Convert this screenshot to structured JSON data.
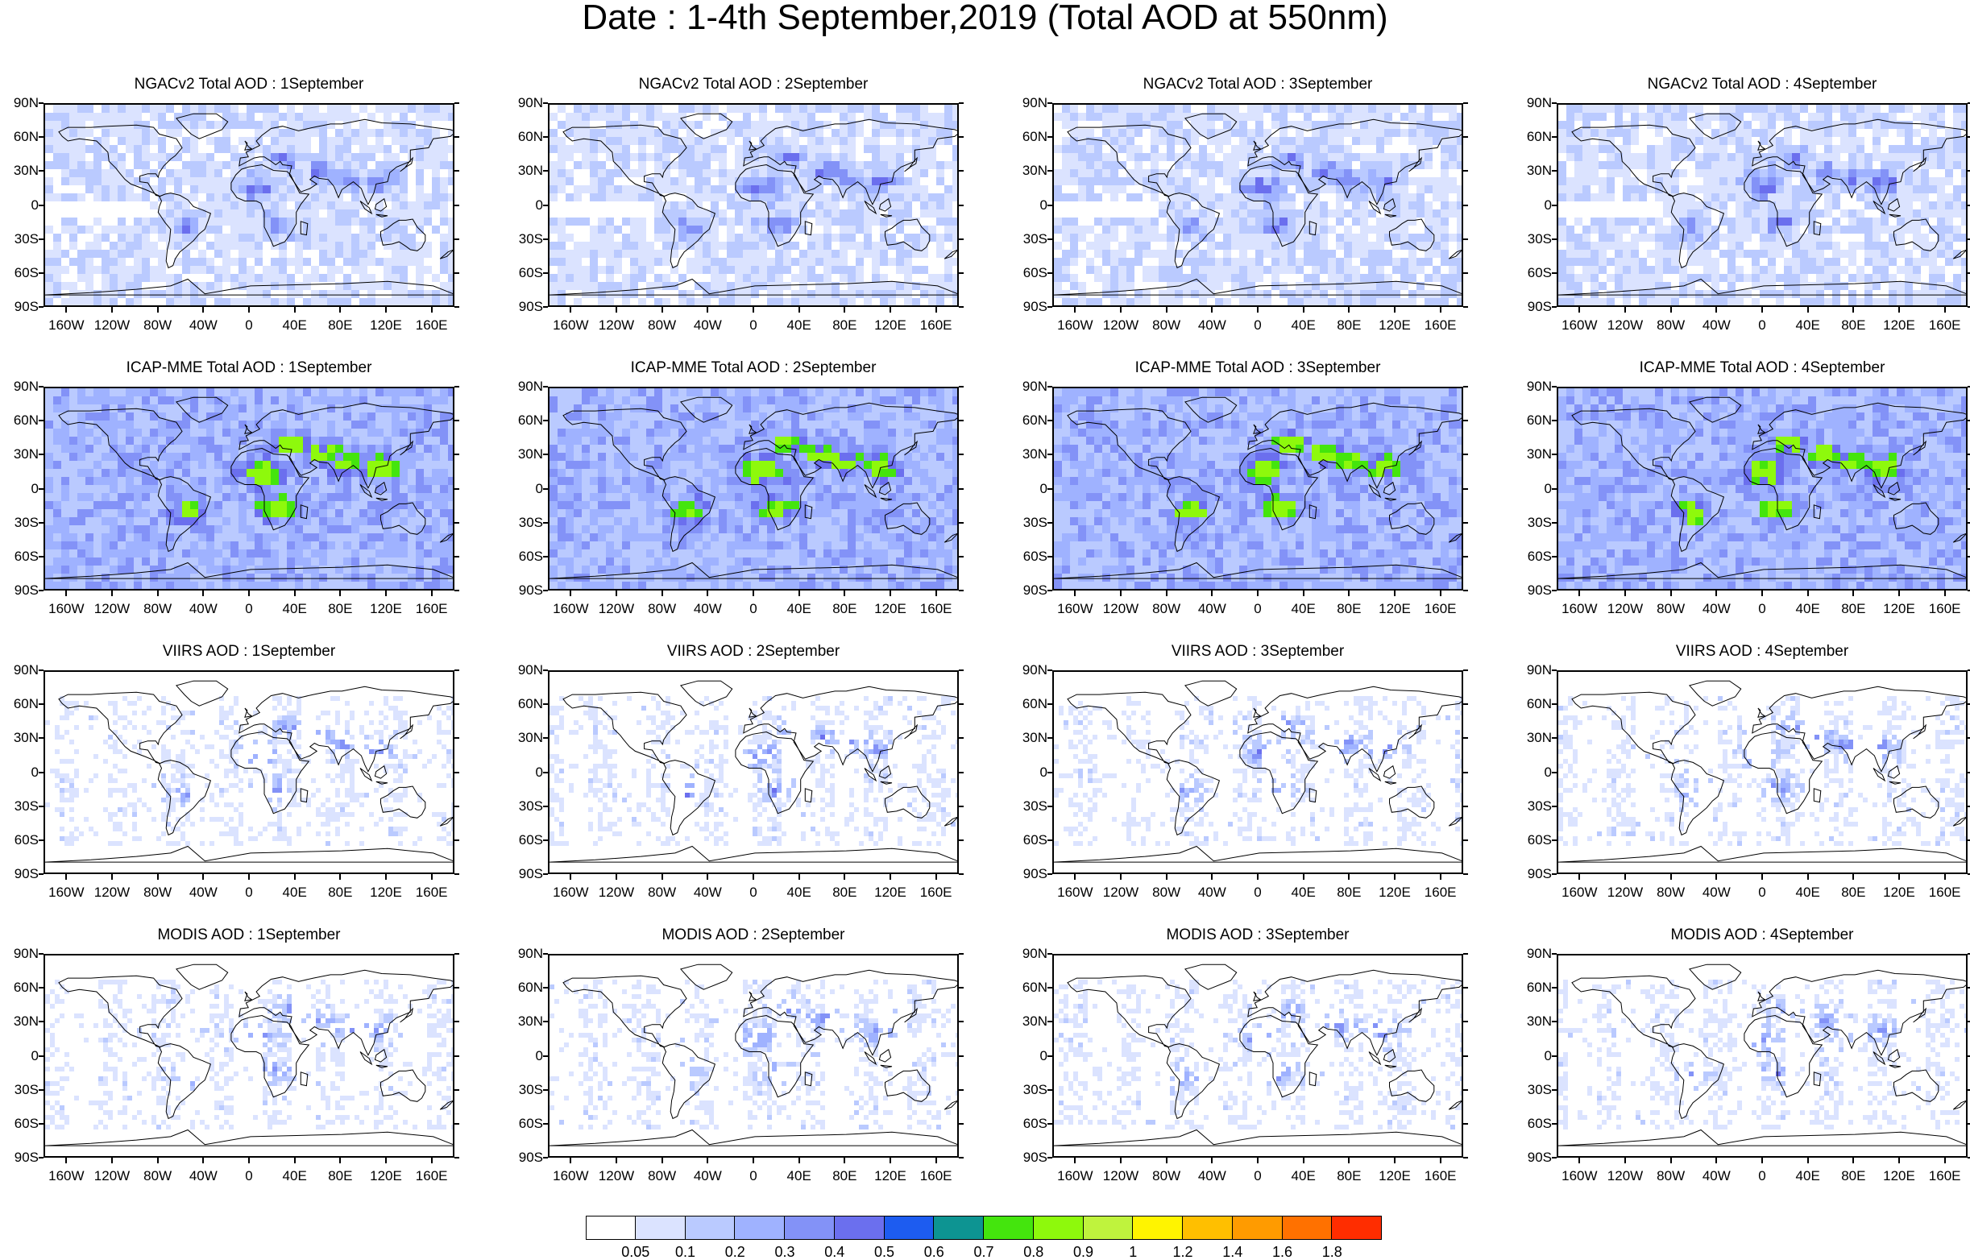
{
  "title": "Date : 1-4th September,2019 (Total AOD at 550nm)",
  "panels": [
    [
      "NGACv2 Total AOD : 1September",
      "NGACv2 Total AOD : 2September",
      "NGACv2 Total AOD : 3September",
      "NGACv2 Total AOD : 4September"
    ],
    [
      "ICAP-MME Total AOD : 1September",
      "ICAP-MME Total AOD : 2September",
      "ICAP-MME Total AOD : 3September",
      "ICAP-MME Total AOD : 4September"
    ],
    [
      "VIIRS AOD : 1September",
      "VIIRS AOD : 2September",
      "VIIRS AOD : 3September",
      "VIIRS AOD : 4September"
    ],
    [
      "MODIS AOD : 1September",
      "MODIS AOD : 2September",
      "MODIS AOD : 3September",
      "MODIS AOD : 4September"
    ]
  ],
  "panel_styles": [
    "model-ngac",
    "model-icap",
    "satellite-viirs",
    "satellite-modis"
  ],
  "lat_labels": [
    "90N",
    "60N",
    "30N",
    "0",
    "30S",
    "60S",
    "90S"
  ],
  "lon_labels": [
    "160W",
    "120W",
    "80W",
    "40W",
    "0",
    "40E",
    "80E",
    "120E",
    "160E"
  ],
  "colorbar": {
    "colors": [
      "#ffffff",
      "#dbe3ff",
      "#bacaff",
      "#9fb2ff",
      "#8392f7",
      "#6b6fee",
      "#1d5cf0",
      "#0d9492",
      "#44e50d",
      "#8ef90c",
      "#bff33d",
      "#fff400",
      "#ffbf00",
      "#ff9b00",
      "#ff7100",
      "#ff2d00"
    ],
    "labels": [
      "0.05",
      "0.1",
      "0.2",
      "0.3",
      "0.4",
      "0.5",
      "0.6",
      "0.7",
      "0.8",
      "0.9",
      "1",
      "1.2",
      "1.4",
      "1.6",
      "1.8"
    ]
  }
}
